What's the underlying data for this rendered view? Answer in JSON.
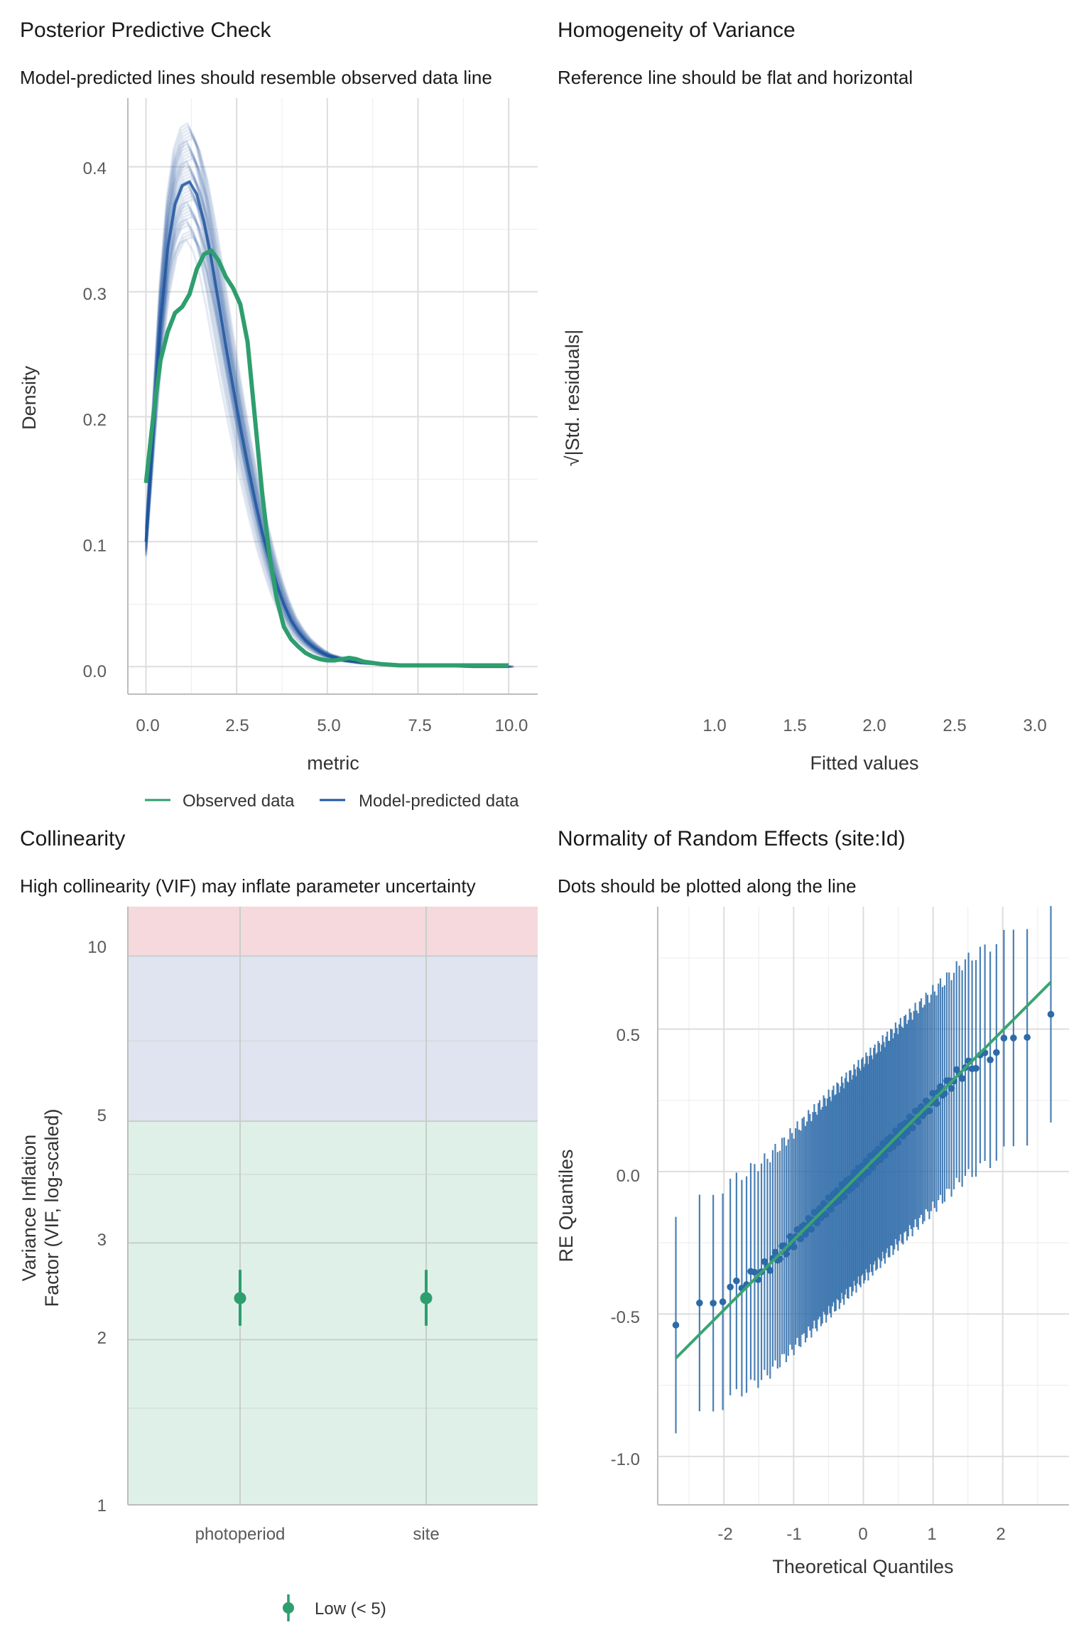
{
  "colors": {
    "observed": "#2e9e6e",
    "predicted": "#1f56a0",
    "qq_line": "#3aa56f",
    "qq_points": "#2c6aa8",
    "grid": "#e3e3e3",
    "band_high": "#f5d9dd",
    "band_moderate": "#dfe4f0",
    "band_low": "#dff0e8"
  },
  "panels": {
    "ppc": {
      "title": "Posterior Predictive Check",
      "subtitle": "Model-predicted lines should resemble observed data line",
      "xlabel": "metric",
      "ylabel": "Density",
      "x_ticks": [
        "0.0",
        "2.5",
        "5.0",
        "7.5",
        "10.0"
      ],
      "y_ticks": [
        "0.0",
        "0.1",
        "0.2",
        "0.3",
        "0.4"
      ],
      "legend": [
        "Observed data",
        "Model-predicted data"
      ]
    },
    "hov": {
      "title": "Homogeneity of Variance",
      "subtitle": "Reference line should be flat and horizontal",
      "xlabel": "Fitted values",
      "ylabel": "√|Std. residuals|",
      "x_ticks": [
        "1.0",
        "1.5",
        "2.0",
        "2.5",
        "3.0"
      ]
    },
    "vif": {
      "title": "Collinearity",
      "subtitle": "High collinearity (VIF) may inflate parameter uncertainty",
      "ylabel_line1": "Variance Inflation",
      "ylabel_line2": "Factor (VIF, log-scaled)",
      "x_ticks": [
        "photoperiod",
        "site"
      ],
      "y_ticks": [
        "1",
        "2",
        "3",
        "5",
        "10"
      ],
      "legend": [
        "Low (< 5)"
      ]
    },
    "qq": {
      "title": "Normality of Random Effects (site:Id)",
      "subtitle": "Dots should be plotted along the line",
      "xlabel": "Theoretical Quantiles",
      "ylabel": "RE Quantiles",
      "x_ticks": [
        "-2",
        "-1",
        "0",
        "1",
        "2"
      ],
      "y_ticks": [
        "-1.0",
        "-0.5",
        "0.0",
        "0.5"
      ]
    }
  },
  "chart_data": [
    {
      "type": "line",
      "title": "Posterior Predictive Check",
      "xlabel": "metric",
      "ylabel": "Density",
      "xlim": [
        -0.5,
        10.8
      ],
      "ylim": [
        -0.022,
        0.455
      ],
      "series": [
        {
          "name": "Observed data",
          "x": [
            0,
            0.2,
            0.4,
            0.6,
            0.8,
            1.0,
            1.2,
            1.4,
            1.6,
            1.8,
            2.0,
            2.2,
            2.4,
            2.6,
            2.8,
            3.0,
            3.2,
            3.4,
            3.6,
            3.8,
            4.0,
            4.2,
            4.4,
            4.6,
            4.8,
            5.0,
            5.2,
            5.4,
            5.6,
            5.8,
            6.0,
            6.5,
            7.0,
            8.0,
            9.0,
            10.0
          ],
          "y": [
            0.147,
            0.2,
            0.245,
            0.268,
            0.283,
            0.288,
            0.298,
            0.318,
            0.33,
            0.333,
            0.325,
            0.312,
            0.303,
            0.29,
            0.26,
            0.2,
            0.14,
            0.09,
            0.055,
            0.032,
            0.022,
            0.016,
            0.011,
            0.008,
            0.006,
            0.005,
            0.005,
            0.006,
            0.007,
            0.006,
            0.004,
            0.002,
            0.001,
            0.001,
            0.001,
            0.001
          ]
        },
        {
          "name": "Model-predicted data",
          "x": [
            0,
            0.2,
            0.4,
            0.6,
            0.8,
            1.0,
            1.2,
            1.4,
            1.6,
            1.8,
            2.0,
            2.2,
            2.4,
            2.6,
            2.8,
            3.0,
            3.2,
            3.4,
            3.6,
            3.8,
            4.0,
            4.2,
            4.4,
            4.6,
            4.8,
            5.0,
            5.5,
            6.0,
            6.5,
            7.0,
            8.0,
            9.0,
            10.0
          ],
          "y": [
            0.1,
            0.19,
            0.275,
            0.335,
            0.37,
            0.385,
            0.388,
            0.378,
            0.356,
            0.326,
            0.292,
            0.257,
            0.224,
            0.192,
            0.162,
            0.134,
            0.108,
            0.086,
            0.066,
            0.05,
            0.037,
            0.028,
            0.021,
            0.016,
            0.012,
            0.009,
            0.005,
            0.003,
            0.002,
            0.001,
            0.001,
            0.0,
            0.0
          ]
        }
      ]
    },
    {
      "type": "scatter",
      "title": "Homogeneity of Variance",
      "xlabel": "Fitted values",
      "ylabel": "√|Std. residuals|",
      "xlim": [
        0.7,
        3.25
      ]
    },
    {
      "type": "scatter",
      "title": "Collinearity",
      "ylabel": "Variance Inflation Factor (VIF, log-scaled)",
      "log_y": true,
      "ylim": [
        1,
        12.3
      ],
      "categories": [
        "photoperiod",
        "site"
      ],
      "values": [
        2.38,
        2.38
      ],
      "ci_low": [
        2.12,
        2.12
      ],
      "ci_high": [
        2.68,
        2.68
      ],
      "bands": [
        {
          "label": "Low (< 5)",
          "from": 1,
          "to": 5
        },
        {
          "from": 5,
          "to": 10
        },
        {
          "from": 10,
          "to": 12.3
        }
      ]
    },
    {
      "type": "scatter",
      "title": "Normality of Random Effects (site:Id)",
      "xlabel": "Theoretical Quantiles",
      "ylabel": "RE Quantiles",
      "xlim": [
        -2.95,
        2.95
      ],
      "ylim": [
        -1.17,
        0.93
      ],
      "reference_line": {
        "x": [
          -2.69,
          2.69
        ],
        "y": [
          -0.655,
          0.665
        ]
      },
      "n_points": 160,
      "error_half_width": 0.38
    }
  ]
}
